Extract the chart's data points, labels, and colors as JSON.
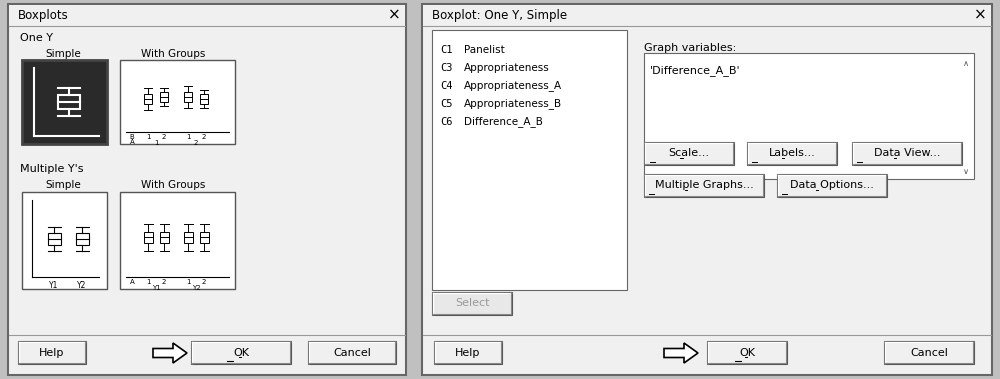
{
  "dialog1": {
    "title": "Boxplots",
    "section1_label": "One Y",
    "simple_label": "Simple",
    "with_groups_label": "With Groups",
    "section2_label": "Multiple Y's",
    "simple2_label": "Simple",
    "with_groups2_label": "With Groups",
    "btn_help": "Help",
    "btn_ok": "OK",
    "btn_cancel": "Cancel"
  },
  "dialog2": {
    "title": "Boxplot: One Y, Simple",
    "variables_label": "Graph variables:",
    "variable_text": "'Difference_A_B'",
    "list_items": [
      [
        "C1",
        "Panelist"
      ],
      [
        "C3",
        "Appropriateness"
      ],
      [
        "C4",
        "Appropriateness_A"
      ],
      [
        "C5",
        "Appropriateness_B"
      ],
      [
        "C6",
        "Difference_A_B"
      ]
    ],
    "btn_scale": "Scale...",
    "btn_labels": "Labels...",
    "btn_dataview": "Data View...",
    "btn_multigraphs": "Multiple Graphs...",
    "btn_dataoptions": "Data Options...",
    "btn_select": "Select",
    "btn_help": "Help",
    "btn_ok": "OK",
    "btn_cancel": "Cancel"
  },
  "bg_color": "#c0c0c0",
  "dialog_bg": "#f0f0f0",
  "white": "#ffffff",
  "dark_box": "#2a2a2a"
}
